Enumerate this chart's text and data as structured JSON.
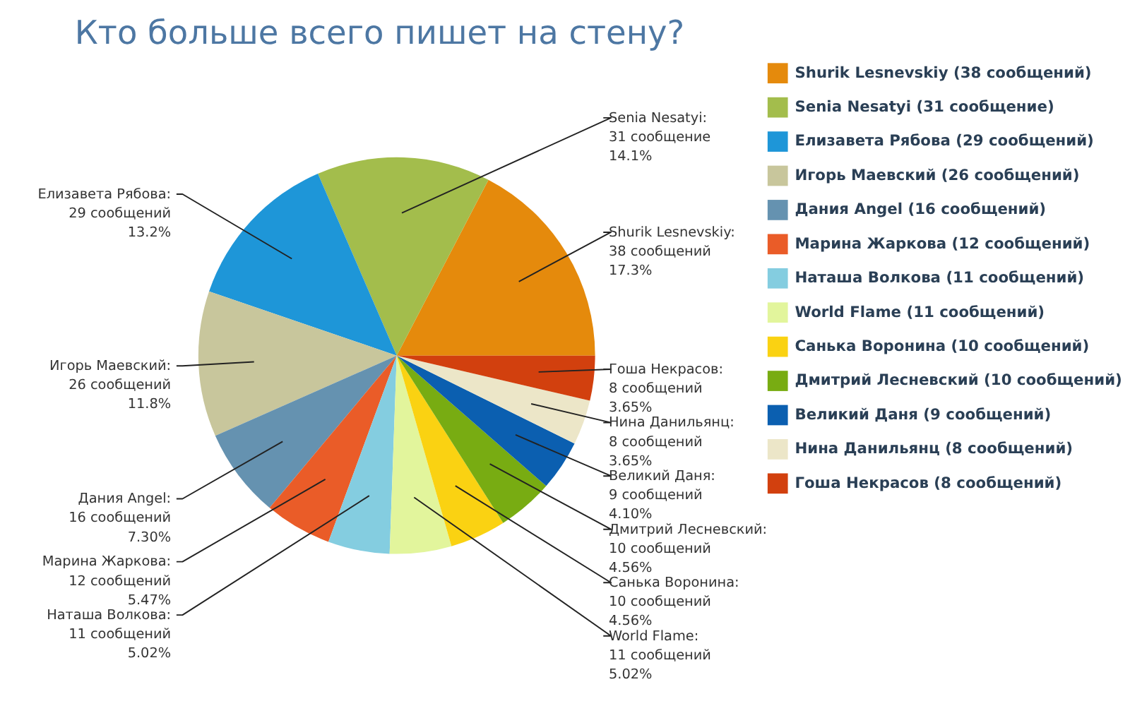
{
  "chart_data": {
    "type": "pie",
    "title": "Кто больше всего пишет на стену?",
    "categories": [
      "Shurik Lesnevskiy (38 сообщений)",
      "Senia Nesatyi (31 сообщение)",
      "Елизавета Рябова (29 сообщений)",
      "Игорь Маевский (26 сообщений)",
      "Дания Angel (16 сообщений)",
      "Марина Жаркова (12 сообщений)",
      "Наташа Волкова (11 сообщений)",
      "World Flame (11 сообщений)",
      "Санька Воронина (10 сообщений)",
      "Дмитрий Лесневский (10 сообщений)",
      "Великий Даня (9 сообщений)",
      "Нина Данильянц (8 сообщений)",
      "Гоша Некрасов (8 сообщений)"
    ],
    "values": [
      38,
      31,
      29,
      26,
      16,
      12,
      11,
      11,
      10,
      10,
      9,
      8,
      8
    ],
    "colors": [
      "#e58a0c",
      "#a3bd4c",
      "#1e96d8",
      "#c8c69c",
      "#6592b0",
      "#ea5c28",
      "#84cde0",
      "#e2f59c",
      "#fad212",
      "#78ac12",
      "#0b5fb0",
      "#ece6c8",
      "#d2400e"
    ],
    "value_labels": [
      "Shurik Lesnevskiy:\n38 сообщений\n17.3%",
      "Senia Nesatyi:\n31 сообщение\n14.1%",
      "Елизавета Рябова:\n29 сообщений\n13.2%",
      "Игорь Маевский:\n26 сообщений\n11.8%",
      "Дания Angel:\n16 сообщений\n7.30%",
      "Марина Жаркова:\n12 сообщений\n5.47%",
      "Наташа Волкова:\n11 сообщений\n5.02%",
      "World Flame:\n11 сообщений\n5.02%",
      "Санька Воронина:\n10 сообщений\n4.56%",
      "Дмитрий Лесневский:\n10 сообщений\n4.56%",
      "Великий Даня:\n9 сообщений\n4.10%",
      "Нина Данильянц:\n8 сообщений\n3.65%",
      "Гоша Некрасов:\n8 сообщений\n3.65%"
    ],
    "legend": "right"
  }
}
